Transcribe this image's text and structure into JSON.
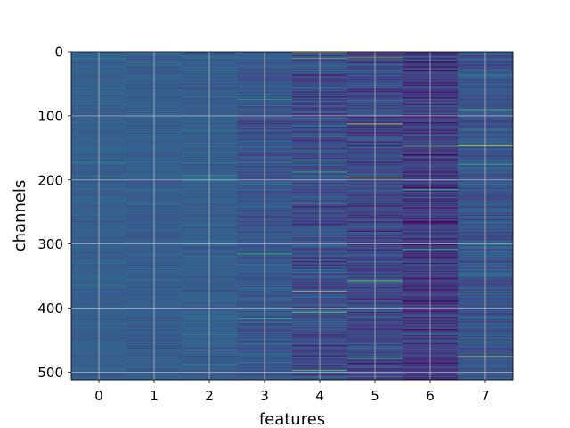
{
  "chart_data": {
    "type": "heatmap",
    "title": "",
    "xlabel": "features",
    "ylabel": "channels",
    "colormap": "viridis",
    "grid": true,
    "x_categories": [
      0,
      1,
      2,
      3,
      4,
      5,
      6,
      7
    ],
    "x_tick_labels": [
      "0",
      "1",
      "2",
      "3",
      "4",
      "5",
      "6",
      "7"
    ],
    "y_range": [
      0,
      512
    ],
    "y_ticks": [
      0,
      100,
      200,
      300,
      400,
      500
    ],
    "y_tick_labels": [
      "0",
      "100",
      "200",
      "300",
      "400",
      "500"
    ],
    "n_rows": 512,
    "n_cols": 8,
    "value_range": [
      0,
      1
    ],
    "column_profiles": [
      {
        "feature": 0,
        "mean": 0.38,
        "spread": 0.05
      },
      {
        "feature": 1,
        "mean": 0.37,
        "spread": 0.06
      },
      {
        "feature": 2,
        "mean": 0.38,
        "spread": 0.08
      },
      {
        "feature": 3,
        "mean": 0.34,
        "spread": 0.11
      },
      {
        "feature": 4,
        "mean": 0.3,
        "spread": 0.17
      },
      {
        "feature": 5,
        "mean": 0.28,
        "spread": 0.16
      },
      {
        "feature": 6,
        "mean": 0.22,
        "spread": 0.16
      },
      {
        "feature": 7,
        "mean": 0.34,
        "spread": 0.12
      }
    ],
    "highlights": [
      {
        "feature": 0,
        "channel": 10,
        "value": 0.62
      },
      {
        "feature": 0,
        "channel": 172,
        "value": 0.6
      },
      {
        "feature": 0,
        "channel": 193,
        "value": 0.58
      },
      {
        "feature": 1,
        "channel": 193,
        "value": 0.55
      },
      {
        "feature": 2,
        "channel": 8,
        "value": 0.65
      },
      {
        "feature": 2,
        "channel": 192,
        "value": 0.72
      },
      {
        "feature": 3,
        "channel": 74,
        "value": 0.75
      },
      {
        "feature": 3,
        "channel": 172,
        "value": 0.7
      },
      {
        "feature": 3,
        "channel": 315,
        "value": 0.8
      },
      {
        "feature": 3,
        "channel": 416,
        "value": 0.78
      },
      {
        "feature": 4,
        "channel": 1,
        "value": 0.98
      },
      {
        "feature": 4,
        "channel": 10,
        "value": 0.85
      },
      {
        "feature": 4,
        "channel": 170,
        "value": 0.8
      },
      {
        "feature": 4,
        "channel": 186,
        "value": 0.78
      },
      {
        "feature": 4,
        "channel": 373,
        "value": 0.92
      },
      {
        "feature": 4,
        "channel": 406,
        "value": 0.9
      },
      {
        "feature": 4,
        "channel": 497,
        "value": 0.88
      },
      {
        "feature": 5,
        "channel": 8,
        "value": 0.92
      },
      {
        "feature": 5,
        "channel": 112,
        "value": 0.95
      },
      {
        "feature": 5,
        "channel": 195,
        "value": 0.97
      },
      {
        "feature": 5,
        "channel": 357,
        "value": 0.9
      },
      {
        "feature": 5,
        "channel": 478,
        "value": 0.85
      },
      {
        "feature": 6,
        "channel": 5,
        "value": 0.02
      },
      {
        "feature": 6,
        "channel": 147,
        "value": 0.88
      },
      {
        "feature": 6,
        "channel": 215,
        "value": 0.82
      },
      {
        "feature": 6,
        "channel": 308,
        "value": 0.78
      },
      {
        "feature": 7,
        "channel": 90,
        "value": 0.85
      },
      {
        "feature": 7,
        "channel": 146,
        "value": 0.97
      },
      {
        "feature": 7,
        "channel": 175,
        "value": 0.8
      },
      {
        "feature": 7,
        "channel": 298,
        "value": 0.78
      },
      {
        "feature": 7,
        "channel": 452,
        "value": 0.82
      },
      {
        "feature": 7,
        "channel": 475,
        "value": 0.9
      }
    ]
  }
}
